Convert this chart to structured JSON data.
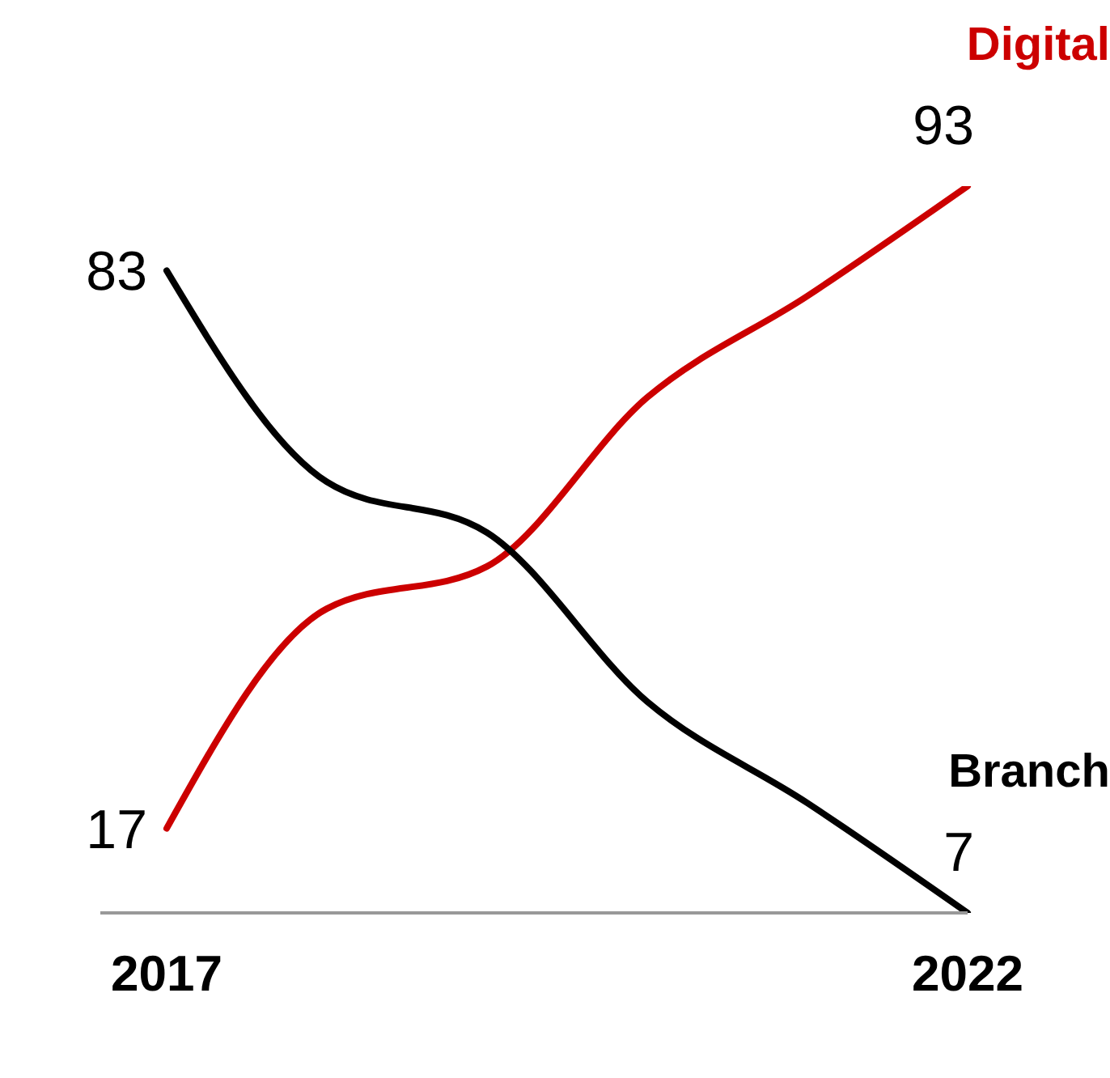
{
  "chart_data": {
    "type": "line",
    "categories": [
      "2017",
      null,
      null,
      null,
      null,
      "2022"
    ],
    "series": [
      {
        "name": "Digital",
        "color": "#cc0000",
        "values": [
          17,
          43,
          48,
          68,
          80,
          93
        ],
        "value_labels": [
          "17",
          null,
          null,
          null,
          null,
          "93"
        ]
      },
      {
        "name": "Branch",
        "color": "#000000",
        "values": [
          83,
          58,
          52,
          32,
          20,
          7
        ],
        "value_labels": [
          "83",
          null,
          null,
          null,
          null,
          "7"
        ]
      }
    ],
    "tick_labels": "x",
    "legend": false,
    "grid": false,
    "marker": "none",
    "line_style": "solid"
  }
}
